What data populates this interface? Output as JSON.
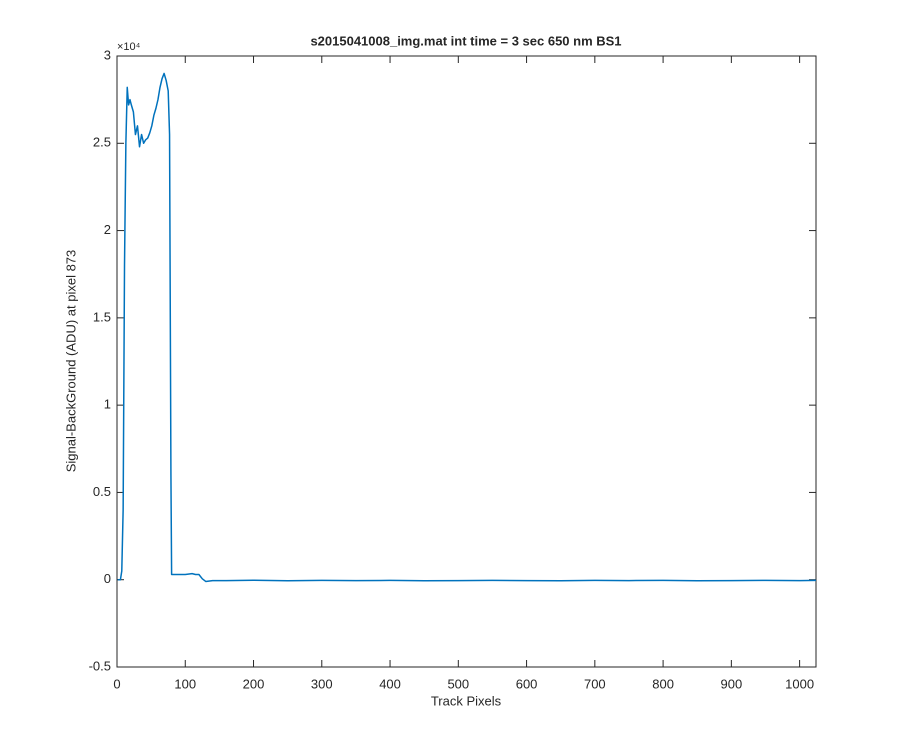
{
  "chart_data": {
    "type": "line",
    "title": "s2015041008_img.mat int time = 3 sec  650 nm BS1",
    "x_label": "Track Pixels",
    "y_label": "Signal-BackGround (ADU) at pixel 873",
    "y_multiplier": "×10⁴",
    "x": [
      1,
      3,
      5,
      7,
      9,
      11,
      13,
      15,
      17,
      19,
      21,
      24,
      27,
      30,
      33,
      36,
      39,
      42,
      45,
      48,
      51,
      54,
      57,
      60,
      63,
      66,
      69,
      72,
      75,
      77,
      79,
      80,
      82,
      86,
      90,
      100,
      110,
      115,
      120,
      125,
      130,
      140,
      160,
      200,
      250,
      300,
      350,
      400,
      450,
      500,
      550,
      600,
      650,
      700,
      750,
      800,
      850,
      900,
      950,
      1000,
      1024
    ],
    "series": [
      {
        "color": "#0072bd",
        "values": [
          0,
          0,
          0,
          0.05,
          0.4,
          1.8,
          2.5,
          2.82,
          2.72,
          2.75,
          2.72,
          2.68,
          2.55,
          2.6,
          2.48,
          2.55,
          2.5,
          2.52,
          2.53,
          2.56,
          2.6,
          2.66,
          2.7,
          2.75,
          2.82,
          2.87,
          2.9,
          2.86,
          2.8,
          2.55,
          0.6,
          0.03,
          0.03,
          0.03,
          0.03,
          0.03,
          0.035,
          0.03,
          0.03,
          0.005,
          -0.01,
          -0.005,
          -0.005,
          -0.003,
          -0.006,
          -0.004,
          -0.005,
          -0.004,
          -0.006,
          -0.005,
          -0.004,
          -0.005,
          -0.006,
          -0.004,
          -0.005,
          -0.004,
          -0.006,
          -0.005,
          -0.004,
          -0.005,
          -0.004
        ]
      }
    ],
    "xlim": [
      0,
      1024
    ],
    "xticks": [
      0,
      100,
      200,
      300,
      400,
      500,
      600,
      700,
      800,
      900,
      1000
    ],
    "ylim": [
      -0.5,
      3
    ],
    "yticks": [
      -0.5,
      0,
      0.5,
      1,
      1.5,
      2,
      2.5,
      3
    ],
    "grid": false
  }
}
